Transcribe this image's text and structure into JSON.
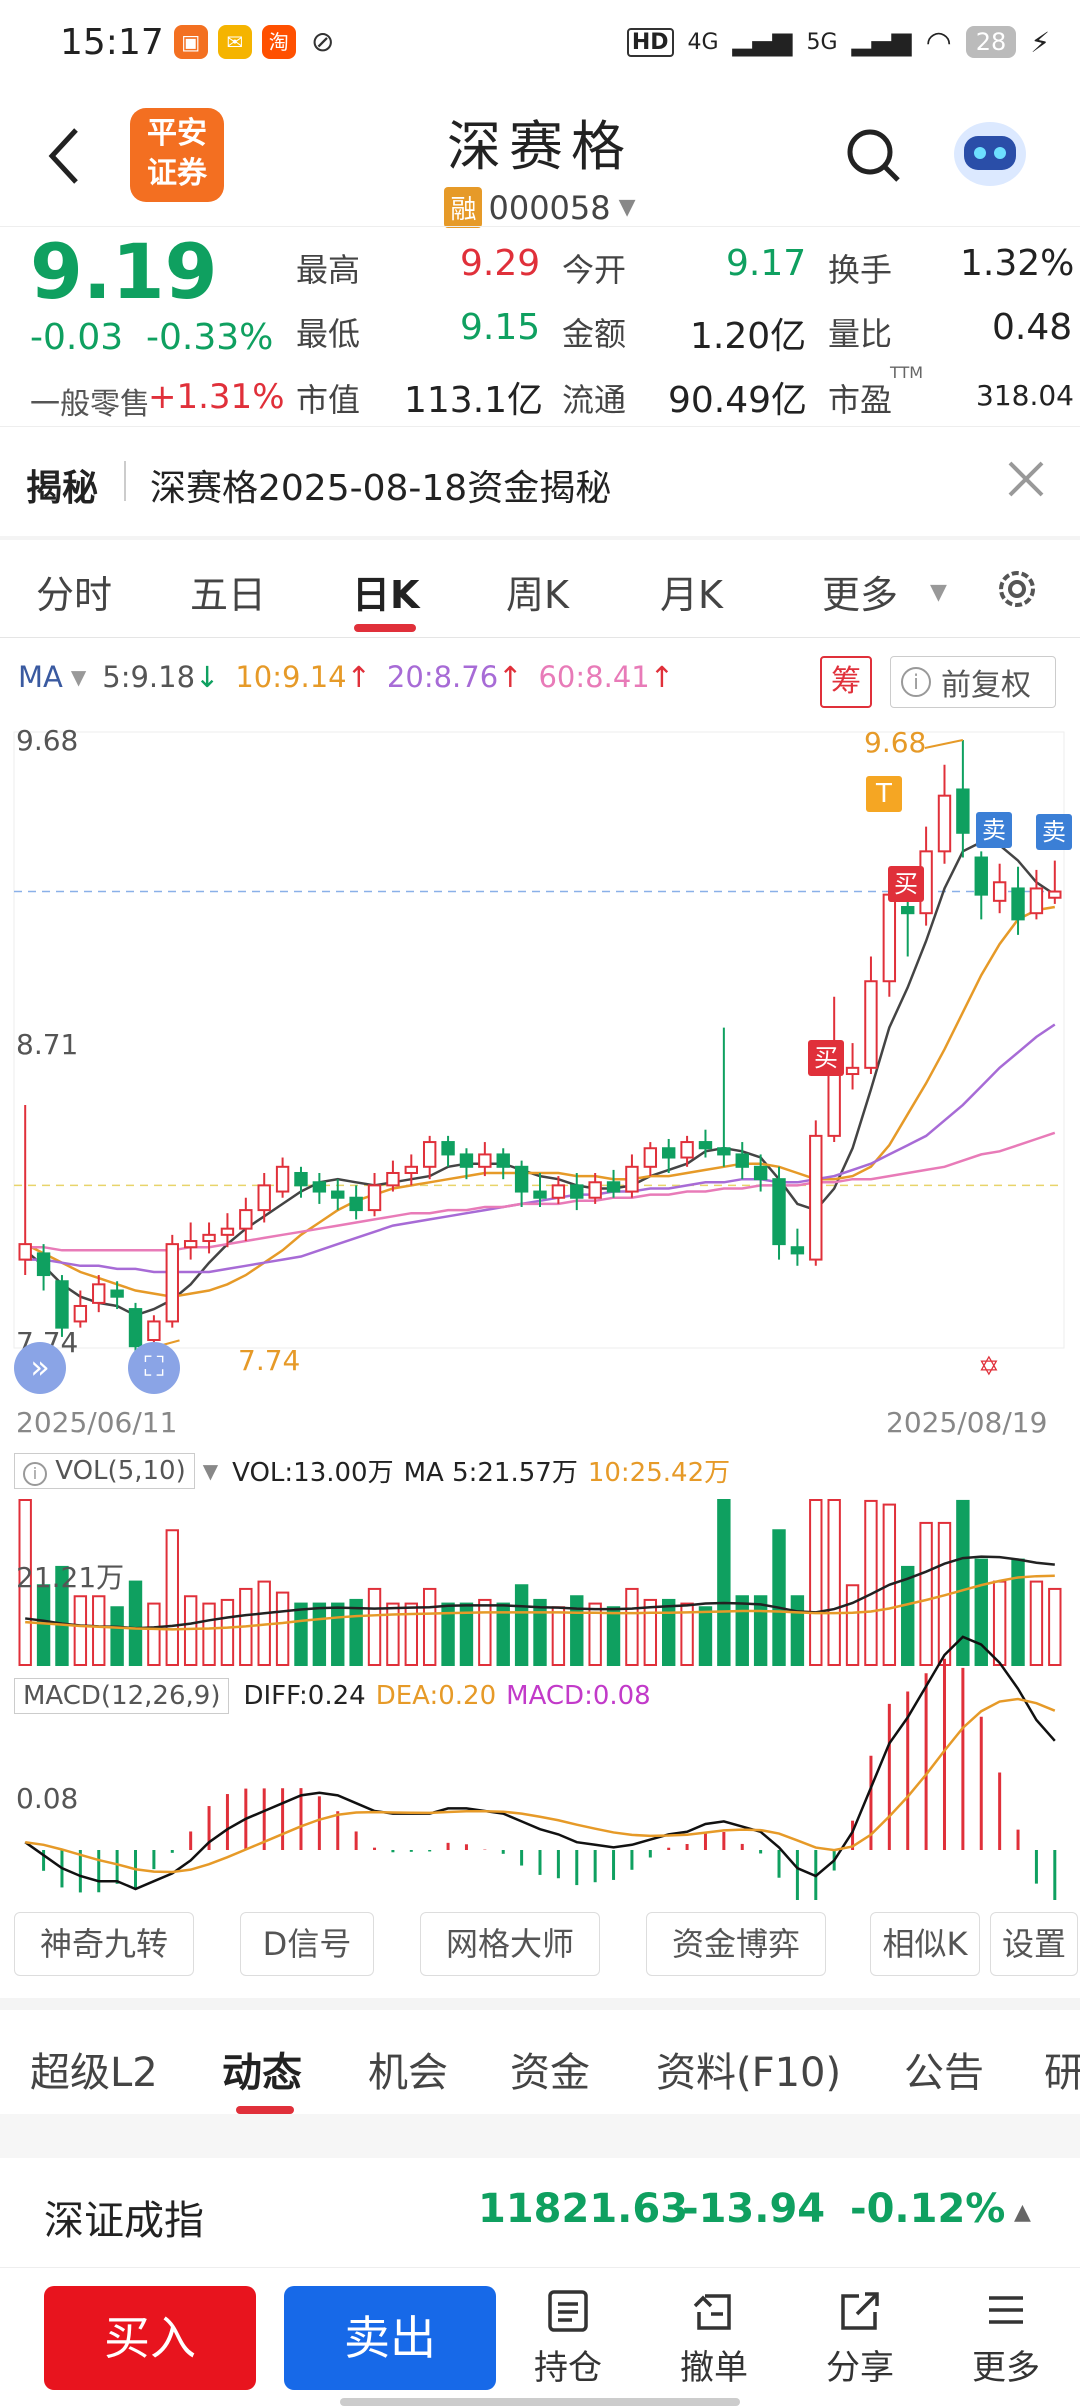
{
  "status_bar": {
    "time": "15:17",
    "battery": "28",
    "net1": "HD",
    "net2": "4G",
    "net3": "5G"
  },
  "header": {
    "back_icon": "back-arrow-icon",
    "broker_logo_line1": "平安",
    "broker_logo_line2": "证券",
    "stock_name": "深赛格",
    "margin_badge": "融",
    "code": "000058"
  },
  "quote": {
    "price": "9.19",
    "change": "-0.03",
    "change_pct": "-0.33%",
    "retail_label": "一般零售",
    "retail_value": "+1.31%",
    "fields": [
      {
        "label": "最高",
        "value": "9.29"
      },
      {
        "label": "今开",
        "value": "9.17"
      },
      {
        "label": "换手",
        "value": "1.32%"
      },
      {
        "label": "最低",
        "value": "9.15"
      },
      {
        "label": "金额",
        "value": "1.20亿"
      },
      {
        "label": "量比",
        "value": "0.48"
      },
      {
        "label": "市值",
        "value": "113.1亿"
      },
      {
        "label": "流通",
        "value": "90.49亿"
      },
      {
        "label": "市盈",
        "value": "318.04"
      }
    ],
    "pe_suffix": "TTM"
  },
  "reveal": {
    "tag": "揭秘",
    "text": "深赛格2025-08-18资金揭秘"
  },
  "tabs": [
    "分时",
    "五日",
    "日K",
    "周K",
    "月K",
    "更多"
  ],
  "active_tab": "日K",
  "ma_legend": {
    "label": "MA",
    "ma5": "5:9.18",
    "ma10": "10:9.14",
    "ma20": "20:8.76",
    "ma60": "60:8.41"
  },
  "chip_label": "筹",
  "fuquan_label": "前复权",
  "chart_data": {
    "type": "candlestick",
    "y_axis_labels": [
      "9.68",
      "8.71",
      "7.74"
    ],
    "ylim": [
      7.74,
      9.68
    ],
    "start_date": "2025/06/11",
    "end_date": "2025/08/19",
    "high_marker": "9.68",
    "low_marker": "7.74",
    "markers": [
      "T",
      "买",
      "买",
      "卖",
      "卖"
    ],
    "candles": [
      [
        8.0,
        8.05,
        8.5,
        7.95
      ],
      [
        8.02,
        7.95,
        8.05,
        7.9
      ],
      [
        7.93,
        7.78,
        7.95,
        7.75
      ],
      [
        7.8,
        7.85,
        7.9,
        7.78
      ],
      [
        7.86,
        7.92,
        7.95,
        7.83
      ],
      [
        7.9,
        7.88,
        7.93,
        7.84
      ],
      [
        7.84,
        7.72,
        7.86,
        7.7
      ],
      [
        7.74,
        7.8,
        7.82,
        7.72
      ],
      [
        7.8,
        8.05,
        8.08,
        7.78
      ],
      [
        8.04,
        8.06,
        8.12,
        8.0
      ],
      [
        8.06,
        8.08,
        8.12,
        8.02
      ],
      [
        8.08,
        8.1,
        8.15,
        8.04
      ],
      [
        8.1,
        8.16,
        8.2,
        8.06
      ],
      [
        8.16,
        8.24,
        8.28,
        8.12
      ],
      [
        8.22,
        8.3,
        8.33,
        8.2
      ],
      [
        8.28,
        8.24,
        8.3,
        8.2
      ],
      [
        8.25,
        8.22,
        8.28,
        8.18
      ],
      [
        8.22,
        8.2,
        8.26,
        8.16
      ],
      [
        8.2,
        8.16,
        8.24,
        8.13
      ],
      [
        8.16,
        8.24,
        8.28,
        8.14
      ],
      [
        8.24,
        8.28,
        8.32,
        8.22
      ],
      [
        8.28,
        8.3,
        8.34,
        8.24
      ],
      [
        8.3,
        8.38,
        8.4,
        8.26
      ],
      [
        8.38,
        8.34,
        8.4,
        8.3
      ],
      [
        8.34,
        8.3,
        8.36,
        8.26
      ],
      [
        8.3,
        8.34,
        8.38,
        8.27
      ],
      [
        8.34,
        8.3,
        8.36,
        8.26
      ],
      [
        8.3,
        8.22,
        8.32,
        8.17
      ],
      [
        8.22,
        8.2,
        8.28,
        8.17
      ],
      [
        8.2,
        8.24,
        8.27,
        8.18
      ],
      [
        8.24,
        8.2,
        8.28,
        8.16
      ],
      [
        8.2,
        8.25,
        8.28,
        8.18
      ],
      [
        8.25,
        8.22,
        8.29,
        8.2
      ],
      [
        8.22,
        8.3,
        8.34,
        8.2
      ],
      [
        8.3,
        8.36,
        8.38,
        8.27
      ],
      [
        8.36,
        8.33,
        8.39,
        8.28
      ],
      [
        8.33,
        8.38,
        8.4,
        8.3
      ],
      [
        8.38,
        8.36,
        8.42,
        8.33
      ],
      [
        8.36,
        8.34,
        8.75,
        8.3
      ],
      [
        8.34,
        8.3,
        8.38,
        8.26
      ],
      [
        8.3,
        8.26,
        8.34,
        8.22
      ],
      [
        8.26,
        8.05,
        8.3,
        8.0
      ],
      [
        8.04,
        8.02,
        8.1,
        7.98
      ],
      [
        8.0,
        8.4,
        8.45,
        7.98
      ],
      [
        8.4,
        8.6,
        8.85,
        8.38
      ],
      [
        8.6,
        8.62,
        8.7,
        8.55
      ],
      [
        8.62,
        8.9,
        8.98,
        8.6
      ],
      [
        8.9,
        9.18,
        9.22,
        8.85
      ],
      [
        9.14,
        9.12,
        9.18,
        8.98
      ],
      [
        9.12,
        9.32,
        9.4,
        9.08
      ],
      [
        9.32,
        9.5,
        9.6,
        9.28
      ],
      [
        9.52,
        9.38,
        9.68,
        9.3
      ],
      [
        9.3,
        9.18,
        9.32,
        9.1
      ],
      [
        9.16,
        9.22,
        9.28,
        9.12
      ],
      [
        9.2,
        9.1,
        9.27,
        9.05
      ],
      [
        9.12,
        9.2,
        9.26,
        9.1
      ],
      [
        9.17,
        9.19,
        9.29,
        9.15
      ]
    ],
    "ma_lines": {
      "ma5": [
        8.03,
        7.98,
        7.92,
        7.88,
        7.86,
        7.85,
        7.82,
        7.84,
        7.87,
        7.92,
        7.99,
        8.05,
        8.1,
        8.14,
        8.18,
        8.22,
        8.25,
        8.26,
        8.25,
        8.24,
        8.25,
        8.26,
        8.27,
        8.3,
        8.31,
        8.31,
        8.31,
        8.29,
        8.27,
        8.26,
        8.24,
        8.23,
        8.23,
        8.24,
        8.27,
        8.29,
        8.31,
        8.35,
        8.36,
        8.35,
        8.33,
        8.26,
        8.18,
        8.16,
        8.23,
        8.36,
        8.55,
        8.75,
        8.88,
        9.03,
        9.2,
        9.32,
        9.35,
        9.34,
        9.29,
        9.22,
        9.18
      ],
      "ma10": [
        8.05,
        8.02,
        7.99,
        7.96,
        7.94,
        7.92,
        7.9,
        7.89,
        7.88,
        7.89,
        7.9,
        7.92,
        7.95,
        7.99,
        8.03,
        8.08,
        8.12,
        8.16,
        8.19,
        8.21,
        8.23,
        8.24,
        8.25,
        8.26,
        8.27,
        8.28,
        8.28,
        8.28,
        8.28,
        8.28,
        8.27,
        8.27,
        8.26,
        8.26,
        8.27,
        8.27,
        8.28,
        8.29,
        8.3,
        8.31,
        8.31,
        8.3,
        8.28,
        8.26,
        8.26,
        8.27,
        8.3,
        8.37,
        8.47,
        8.57,
        8.68,
        8.8,
        8.92,
        9.02,
        9.1,
        9.13,
        9.14
      ],
      "ma20": [
        8.0,
        8.0,
        7.99,
        7.98,
        7.98,
        7.97,
        7.97,
        7.96,
        7.96,
        7.96,
        7.96,
        7.97,
        7.98,
        7.99,
        8.0,
        8.01,
        8.03,
        8.05,
        8.07,
        8.09,
        8.11,
        8.12,
        8.13,
        8.14,
        8.15,
        8.16,
        8.17,
        8.18,
        8.19,
        8.2,
        8.21,
        8.21,
        8.22,
        8.22,
        8.23,
        8.23,
        8.24,
        8.25,
        8.25,
        8.26,
        8.26,
        8.25,
        8.25,
        8.26,
        8.27,
        8.29,
        8.31,
        8.34,
        8.37,
        8.4,
        8.45,
        8.5,
        8.56,
        8.62,
        8.67,
        8.72,
        8.76
      ],
      "ma60": [
        8.04,
        8.04,
        8.03,
        8.03,
        8.03,
        8.03,
        8.03,
        8.03,
        8.03,
        8.04,
        8.04,
        8.05,
        8.06,
        8.07,
        8.08,
        8.09,
        8.1,
        8.11,
        8.12,
        8.13,
        8.14,
        8.15,
        8.15,
        8.16,
        8.16,
        8.17,
        8.17,
        8.18,
        8.18,
        8.18,
        8.19,
        8.19,
        8.2,
        8.2,
        8.21,
        8.21,
        8.22,
        8.22,
        8.23,
        8.23,
        8.24,
        8.24,
        8.24,
        8.25,
        8.25,
        8.26,
        8.26,
        8.27,
        8.28,
        8.29,
        8.3,
        8.32,
        8.34,
        8.35,
        8.37,
        8.39,
        8.41
      ]
    }
  },
  "vol": {
    "label": "VOL(5,10)",
    "vol": "VOL:13.00万",
    "ma5": "MA 5:21.57万",
    "ma10": "10:25.42万",
    "axis": "21.21万"
  },
  "macd": {
    "label": "MACD(12,26,9)",
    "diff": "DIFF:0.24",
    "dea": "DEA:0.20",
    "macd": "MACD:0.08",
    "axis": "0.08"
  },
  "tool_buttons": [
    "神奇九转",
    "D信号",
    "网格大师",
    "资金博弈",
    "相似K",
    "设置"
  ],
  "bottom_tabs": [
    "超级L2",
    "动态",
    "机会",
    "资金",
    "资料(F10)",
    "公告",
    "研"
  ],
  "active_bottom_tab": "动态",
  "index": {
    "name": "深证成指",
    "value": "11821.63",
    "change": "-13.94",
    "pct": "-0.12%"
  },
  "actions": {
    "buy": "买入",
    "sell": "卖出",
    "holdings": "持仓",
    "cancel": "撤单",
    "share": "分享",
    "more": "更多"
  }
}
